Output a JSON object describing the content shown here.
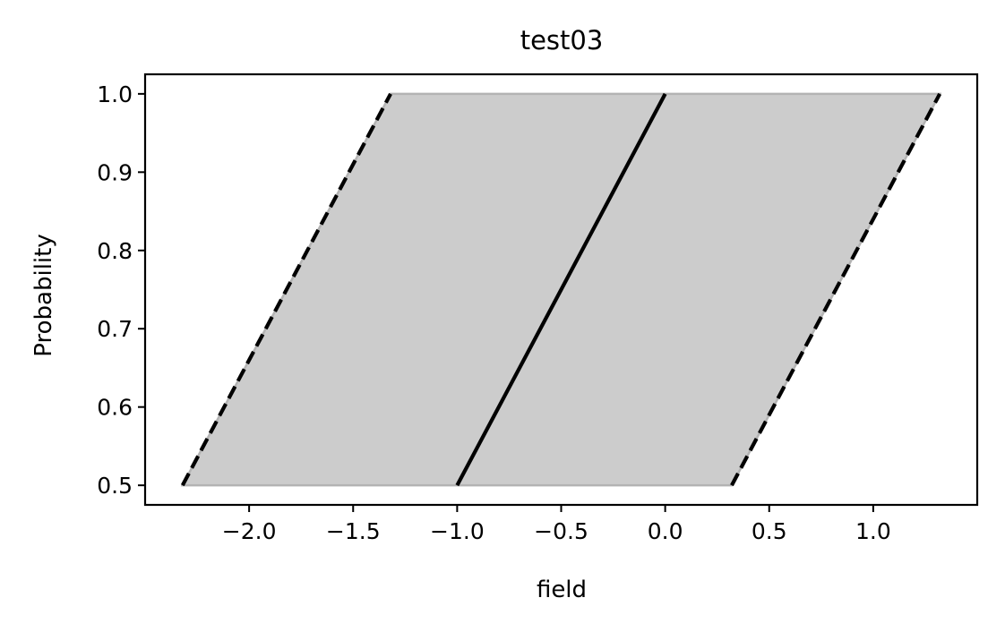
{
  "chart_data": {
    "type": "area",
    "title": "test03",
    "xlabel": "field",
    "ylabel": "Probability",
    "xlim": [
      -2.5,
      1.5
    ],
    "ylim": [
      0.475,
      1.025
    ],
    "xticks": [
      -2.0,
      -1.5,
      -1.0,
      -0.5,
      0.0,
      0.5,
      1.0
    ],
    "xtick_labels": [
      "−2.0",
      "−1.5",
      "−1.0",
      "−0.5",
      "0.0",
      "0.5",
      "1.0"
    ],
    "yticks": [
      0.5,
      0.6,
      0.7,
      0.8,
      0.9,
      1.0
    ],
    "ytick_labels": [
      "0.5",
      "0.6",
      "0.7",
      "0.8",
      "0.9",
      "1.0"
    ],
    "grid": false,
    "band": {
      "color": "#cccccc",
      "lower": [
        {
          "x": -2.32,
          "y": 0.5
        },
        {
          "x": -1.32,
          "y": 1.0
        }
      ],
      "upper": [
        {
          "x": 0.32,
          "y": 0.5
        },
        {
          "x": 1.32,
          "y": 1.0
        }
      ]
    },
    "series": [
      {
        "style": "solid",
        "color": "#000000",
        "x": [
          -1.0,
          0.0
        ],
        "y": [
          0.5,
          1.0
        ]
      },
      {
        "style": "dashed",
        "color": "#000000",
        "x": [
          -2.32,
          -1.32
        ],
        "y": [
          0.5,
          1.0
        ]
      },
      {
        "style": "dashed",
        "color": "#000000",
        "x": [
          0.32,
          1.32
        ],
        "y": [
          0.5,
          1.0
        ]
      }
    ]
  }
}
